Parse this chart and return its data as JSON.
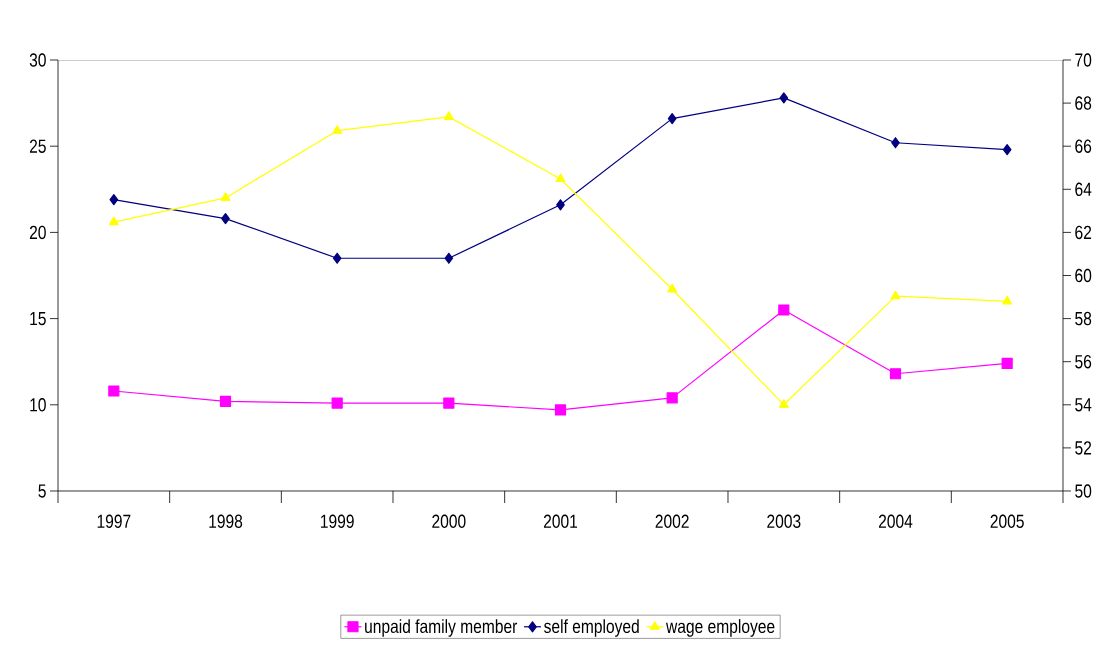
{
  "chart_data": {
    "type": "line",
    "categories": [
      "1997",
      "1998",
      "1999",
      "2000",
      "2001",
      "2002",
      "2003",
      "2004",
      "2005"
    ],
    "series": [
      {
        "name": "unpaid family member",
        "color": "#ff00ff",
        "marker": "square",
        "values": [
          10.8,
          10.2,
          10.1,
          10.1,
          9.7,
          10.4,
          15.5,
          11.8,
          12.4
        ]
      },
      {
        "name": "self employed",
        "color": "#000080",
        "marker": "diamond",
        "values": [
          21.9,
          20.8,
          18.5,
          18.5,
          21.6,
          26.6,
          27.8,
          25.2,
          24.8
        ]
      },
      {
        "name": "wage employee",
        "color": "#ffff00",
        "marker": "triangle",
        "values": [
          20.6,
          22.0,
          25.9,
          26.7,
          23.1,
          16.7,
          10.0,
          16.3,
          16.0
        ]
      }
    ],
    "ylim": [
      5,
      30
    ],
    "yticks": [
      5,
      10,
      15,
      20,
      25,
      30
    ],
    "y2lim": [
      50,
      70
    ],
    "y2ticks": [
      50,
      52,
      54,
      56,
      58,
      60,
      62,
      64,
      66,
      68,
      70
    ],
    "grid": false,
    "legend": "bottom",
    "line_style": "solid"
  }
}
